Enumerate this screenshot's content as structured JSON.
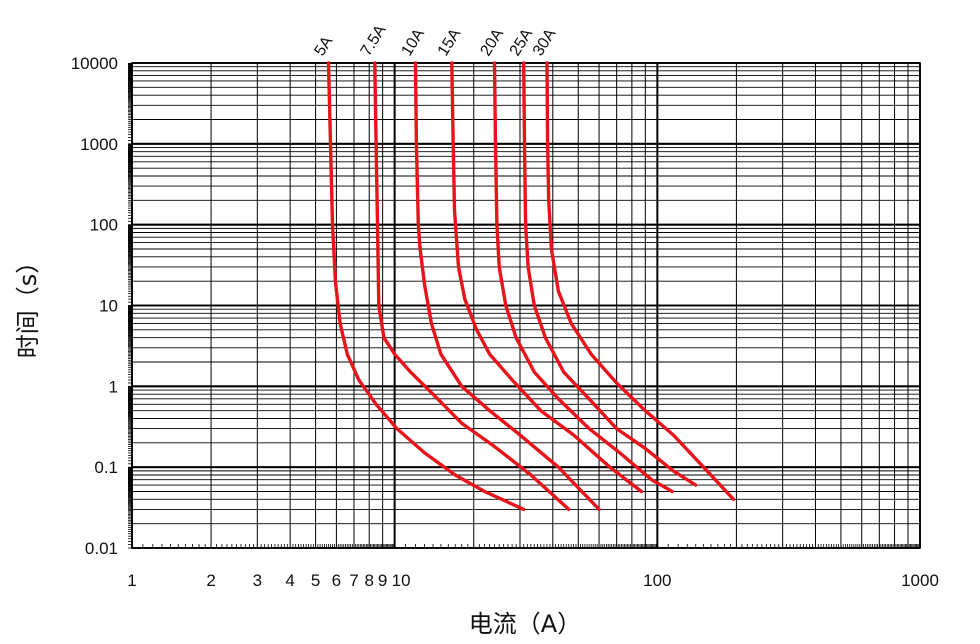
{
  "chart_data": {
    "type": "line",
    "title": "",
    "xlabel": "电流（A）",
    "ylabel": "时间（s）",
    "x_scale": "log",
    "y_scale": "log",
    "xlim": [
      1,
      1000
    ],
    "ylim": [
      0.01,
      10000
    ],
    "grid": true,
    "x_tick_labels": [
      {
        "value": 1,
        "label": "1"
      },
      {
        "value": 2,
        "label": "2"
      },
      {
        "value": 3,
        "label": "3"
      },
      {
        "value": 4,
        "label": "4"
      },
      {
        "value": 5,
        "label": "5"
      },
      {
        "value": 6,
        "label": "6"
      },
      {
        "value": 7,
        "label": "7"
      },
      {
        "value": 8,
        "label": "8"
      },
      {
        "value": 9,
        "label": "9"
      },
      {
        "value": 10,
        "label": "10"
      },
      {
        "value": 100,
        "label": "100"
      },
      {
        "value": 1000,
        "label": "1000"
      }
    ],
    "y_tick_labels": [
      {
        "value": 10000,
        "label": "10000"
      },
      {
        "value": 1000,
        "label": "1000"
      },
      {
        "value": 100,
        "label": "100"
      },
      {
        "value": 10,
        "label": "10"
      },
      {
        "value": 1,
        "label": "1"
      },
      {
        "value": 0.1,
        "label": "0.1"
      },
      {
        "value": 0.01,
        "label": "0.01"
      }
    ],
    "series": [
      {
        "name": "5A",
        "color": "#e8141c",
        "x": [
          5.6,
          5.7,
          5.8,
          5.95,
          6.2,
          6.6,
          7.3,
          8.5,
          10.2,
          13,
          17,
          22,
          31
        ],
        "y": [
          10000,
          1000,
          100,
          20,
          6,
          2.5,
          1.2,
          0.6,
          0.3,
          0.15,
          0.08,
          0.05,
          0.03
        ]
      },
      {
        "name": "7.5A",
        "color": "#e8141c",
        "x": [
          8.4,
          8.5,
          8.6,
          8.7,
          9.1,
          10,
          11.5,
          14,
          18,
          24,
          33,
          46
        ],
        "y": [
          10000,
          1000,
          100,
          10,
          4,
          2.5,
          1.5,
          0.8,
          0.35,
          0.18,
          0.08,
          0.03
        ]
      },
      {
        "name": "10A",
        "color": "#e8141c",
        "x": [
          12,
          12.1,
          12.3,
          12.5,
          13,
          13.8,
          15,
          18,
          23,
          30,
          42,
          60
        ],
        "y": [
          10000,
          1000,
          100,
          50,
          18,
          6,
          2.5,
          1,
          0.5,
          0.25,
          0.1,
          0.03
        ]
      },
      {
        "name": "15A",
        "color": "#e8141c",
        "x": [
          16.5,
          16.7,
          16.9,
          17.5,
          18.5,
          20.5,
          23,
          28,
          36,
          48,
          66,
          87
        ],
        "y": [
          10000,
          1000,
          150,
          30,
          12,
          5,
          2.5,
          1.2,
          0.5,
          0.25,
          0.1,
          0.05
        ]
      },
      {
        "name": "20A",
        "color": "#e8141c",
        "x": [
          24,
          24.2,
          24.5,
          25,
          26.5,
          29,
          34,
          42,
          55,
          72,
          95,
          114
        ],
        "y": [
          10000,
          1000,
          100,
          30,
          10,
          4,
          1.5,
          0.7,
          0.3,
          0.15,
          0.07,
          0.05
        ]
      },
      {
        "name": "25A",
        "color": "#e8141c",
        "x": [
          31,
          31.2,
          31.5,
          32.2,
          34,
          37.5,
          44,
          55,
          70,
          90,
          115,
          140
        ],
        "y": [
          10000,
          1000,
          100,
          30,
          10,
          4,
          1.5,
          0.7,
          0.3,
          0.17,
          0.09,
          0.06
        ]
      },
      {
        "name": "30A",
        "color": "#e8141c",
        "x": [
          38,
          38.2,
          38.6,
          39.5,
          42,
          47,
          56,
          70,
          90,
          115,
          150,
          195
        ],
        "y": [
          10000,
          1000,
          200,
          50,
          15,
          6,
          2.5,
          1.1,
          0.5,
          0.25,
          0.1,
          0.04
        ]
      }
    ]
  }
}
